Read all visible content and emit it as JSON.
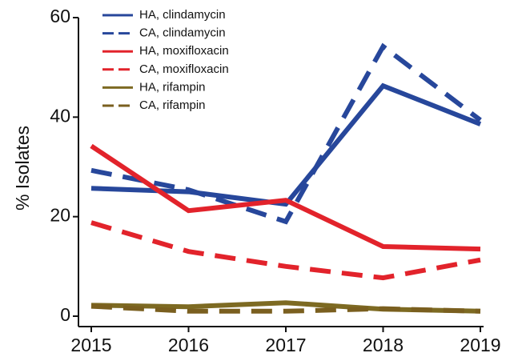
{
  "chart_data": {
    "type": "line",
    "y_label": "% Isolates",
    "x": [
      2015,
      2016,
      2017,
      2018,
      2019
    ],
    "xlim": [
      2015,
      2019
    ],
    "xticks": [
      2015,
      2016,
      2017,
      2018,
      2019
    ],
    "ylim": [
      0,
      60
    ],
    "yticks": [
      0,
      20,
      40,
      60
    ],
    "legend": "upper left",
    "series": [
      {
        "name": "HA, clindamycin",
        "color": "#27479b",
        "dashed": false,
        "values": [
          25.7,
          25,
          22.5,
          46.3,
          38.6
        ]
      },
      {
        "name": "CA, clindamycin",
        "color": "#27479b",
        "dashed": true,
        "values": [
          29.3,
          25.4,
          19,
          54.2,
          39.4
        ]
      },
      {
        "name": "HA, moxifloxacin",
        "color": "#e2232b",
        "dashed": false,
        "values": [
          34.2,
          21.2,
          23.3,
          14,
          13.5
        ]
      },
      {
        "name": "CA, moxifloxacin",
        "color": "#e2232b",
        "dashed": true,
        "values": [
          18.8,
          13,
          10,
          7.7,
          11.3
        ]
      },
      {
        "name": "HA, rifampin",
        "color": "#7d6a22",
        "dashed": false,
        "values": [
          2.2,
          1.9,
          2.7,
          1.4,
          1
        ]
      },
      {
        "name": "CA, rifampin",
        "color": "#7a5f1f",
        "dashed": true,
        "values": [
          2,
          1,
          1,
          1.5,
          1
        ]
      }
    ]
  }
}
